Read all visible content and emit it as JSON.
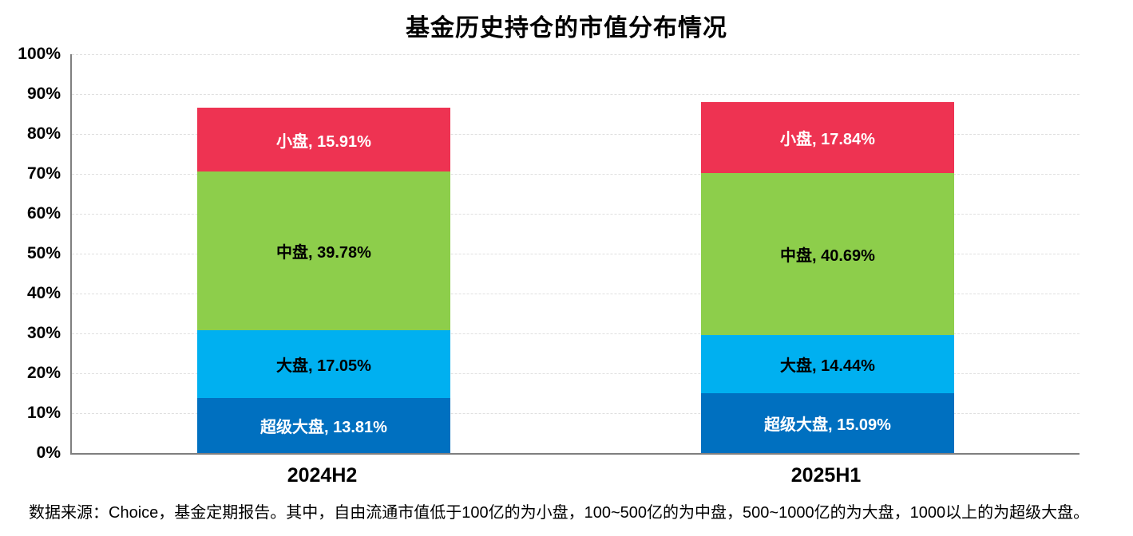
{
  "title": "基金历史持仓的市值分布情况",
  "source_note": "数据来源：Choice，基金定期报告。其中，自由流通市值低于100亿的为小盘，100~500亿的为中盘，500~1000亿的为大盘，1000以上的为超级大盘。",
  "chart_data": {
    "type": "bar",
    "stacked": true,
    "title": "基金历史持仓的市值分布情况",
    "categories": [
      "2024H2",
      "2025H1"
    ],
    "series": [
      {
        "key": "super-large-cap",
        "name": "超级大盘",
        "values": [
          13.81,
          15.09
        ],
        "color": "#0070C0",
        "text_color": "#FFFFFF"
      },
      {
        "key": "large-cap",
        "name": "大盘",
        "values": [
          17.05,
          14.44
        ],
        "color": "#00B0F0",
        "text_color": "#000000"
      },
      {
        "key": "mid-cap",
        "name": "中盘",
        "values": [
          39.78,
          40.69
        ],
        "color": "#8DCE4B",
        "text_color": "#000000"
      },
      {
        "key": "small-cap",
        "name": "小盘",
        "values": [
          15.91,
          17.84
        ],
        "color": "#EE3352",
        "text_color": "#FFFFFF"
      }
    ],
    "totals": [
      86.55,
      88.06
    ],
    "label_format": "{name}, {value}%",
    "xlabel": "",
    "ylabel": "",
    "ylim": [
      0,
      100
    ],
    "y_ticks": [
      "0%",
      "10%",
      "20%",
      "30%",
      "40%",
      "50%",
      "60%",
      "70%",
      "80%",
      "90%",
      "100%"
    ],
    "grid": "horizontal-dashed",
    "legend": "none",
    "axis_color": "#7f7f7f",
    "gridline_color": "#e0e0e0"
  }
}
